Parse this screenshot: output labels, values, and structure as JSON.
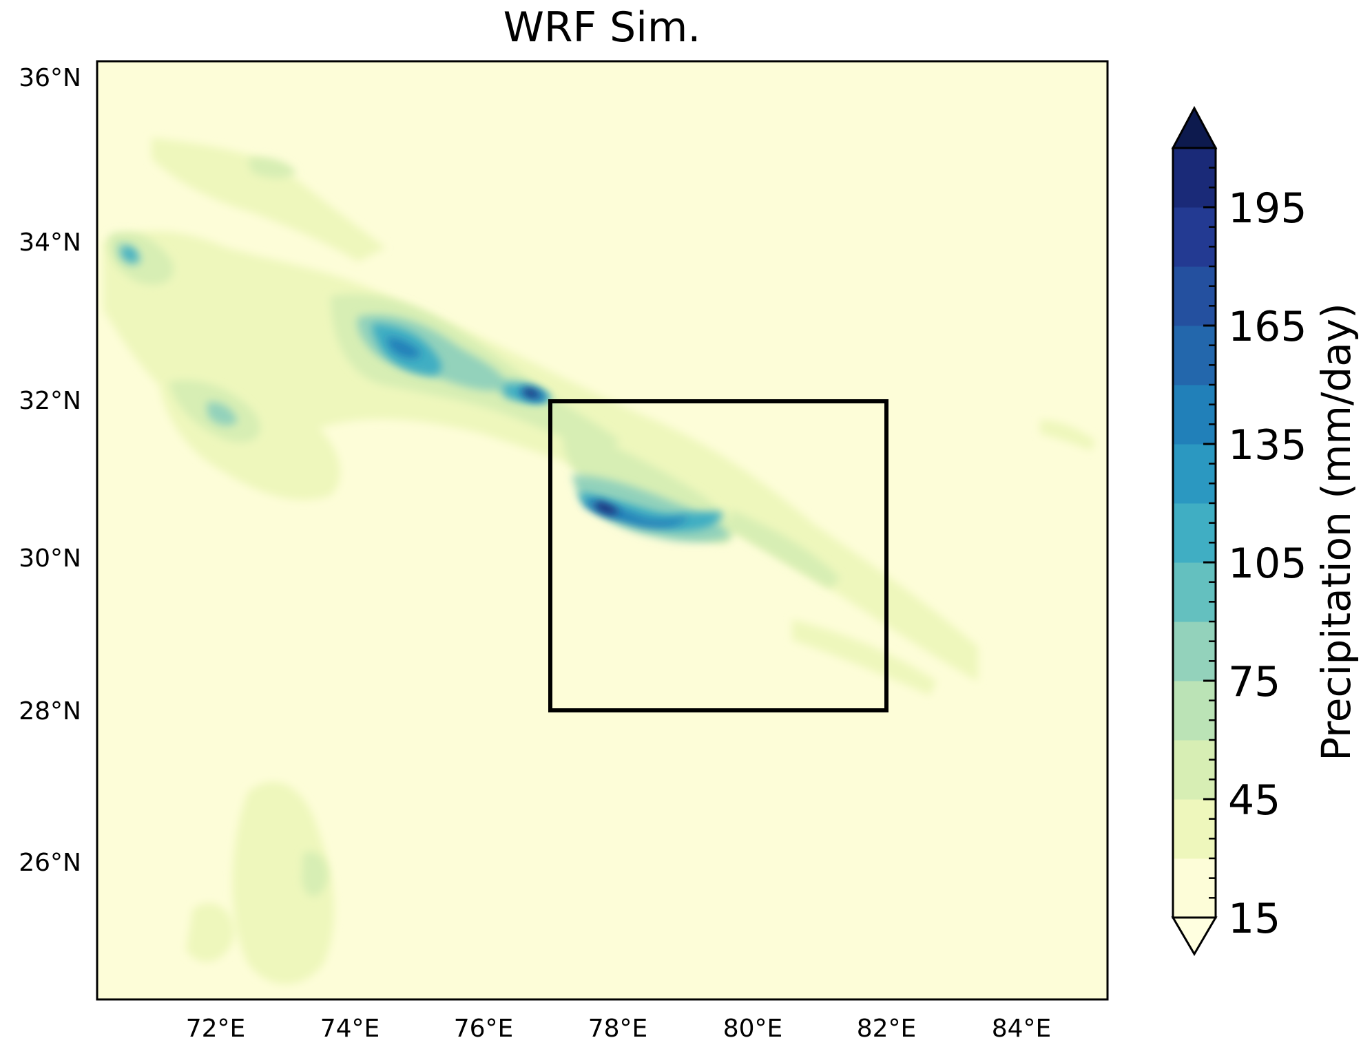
{
  "title": "WRF Sim.",
  "lat_labels": [
    "36°N",
    "34°N",
    "32°N",
    "30°N",
    "28°N",
    "26°N"
  ],
  "lon_labels": [
    "72°E",
    "74°E",
    "76°E",
    "78°E",
    "80°E",
    "82°E",
    "84°E"
  ],
  "colorbar": {
    "label": "Precipitation (mm/day)",
    "tick_labels": [
      "15",
      "45",
      "75",
      "105",
      "135",
      "165",
      "195"
    ],
    "levels": [
      15,
      30,
      45,
      60,
      75,
      90,
      105,
      120,
      135,
      150,
      165,
      180,
      195,
      210
    ],
    "extend": "both",
    "colors": [
      "#fdfdd8",
      "#eef7bc",
      "#d7eeb4",
      "#bbe3b6",
      "#93d2bb",
      "#64c0bf",
      "#40aec3",
      "#2b98c1",
      "#2180b9",
      "#2367ac",
      "#24509f",
      "#233a92",
      "#1a2a78",
      "#0f1d5b"
    ],
    "under_color": "#ffffe0",
    "over_color": "#0d1a4e"
  },
  "colors": {
    "background": "#fdfdd8",
    "frame": "#000000",
    "highlight_box": "#000000"
  },
  "map_extent": {
    "lon_range": [
      70.2,
      85.3
    ],
    "lat_range": [
      24.2,
      36.2
    ]
  },
  "highlight_box": {
    "lon_range": [
      77,
      82
    ],
    "lat_range": [
      28,
      32
    ]
  }
}
